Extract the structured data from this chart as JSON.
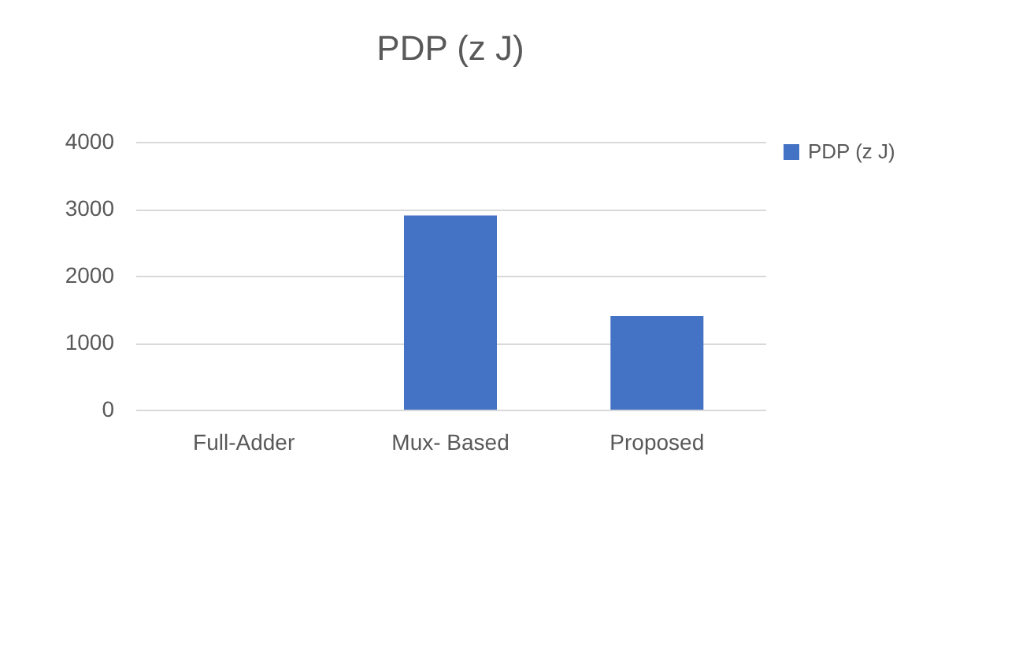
{
  "chart_data": {
    "type": "bar",
    "title": "PDP (z J)",
    "categories": [
      "Full-Adder",
      "Mux- Based",
      "Proposed"
    ],
    "series": [
      {
        "name": "PDP (z J)",
        "color": "#4472c4",
        "values": [
          null,
          2900,
          1400
        ]
      }
    ],
    "ylim": [
      0,
      4000
    ],
    "yticks": [
      0,
      1000,
      2000,
      3000,
      4000
    ],
    "grid": "y",
    "legend": "right"
  }
}
